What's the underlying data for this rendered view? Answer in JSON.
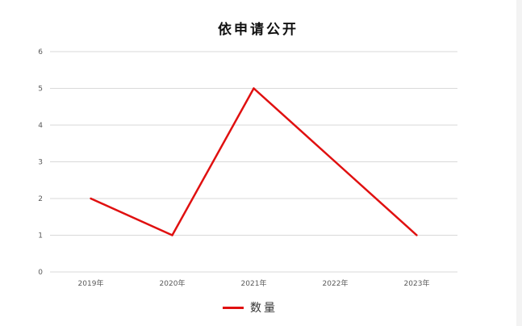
{
  "chart_data": {
    "type": "line",
    "title": "依申请公开",
    "categories": [
      "2019年",
      "2020年",
      "2021年",
      "2022年",
      "2023年"
    ],
    "series": [
      {
        "name": "数量",
        "values": [
          2,
          1,
          5,
          3,
          1
        ],
        "color": "#e01010"
      }
    ],
    "ylim": [
      0,
      6
    ],
    "yticks": [
      "0",
      "1",
      "2",
      "3",
      "4",
      "5",
      "6"
    ],
    "xlabel": "",
    "ylabel": "",
    "grid": true,
    "legend": "bottom"
  }
}
